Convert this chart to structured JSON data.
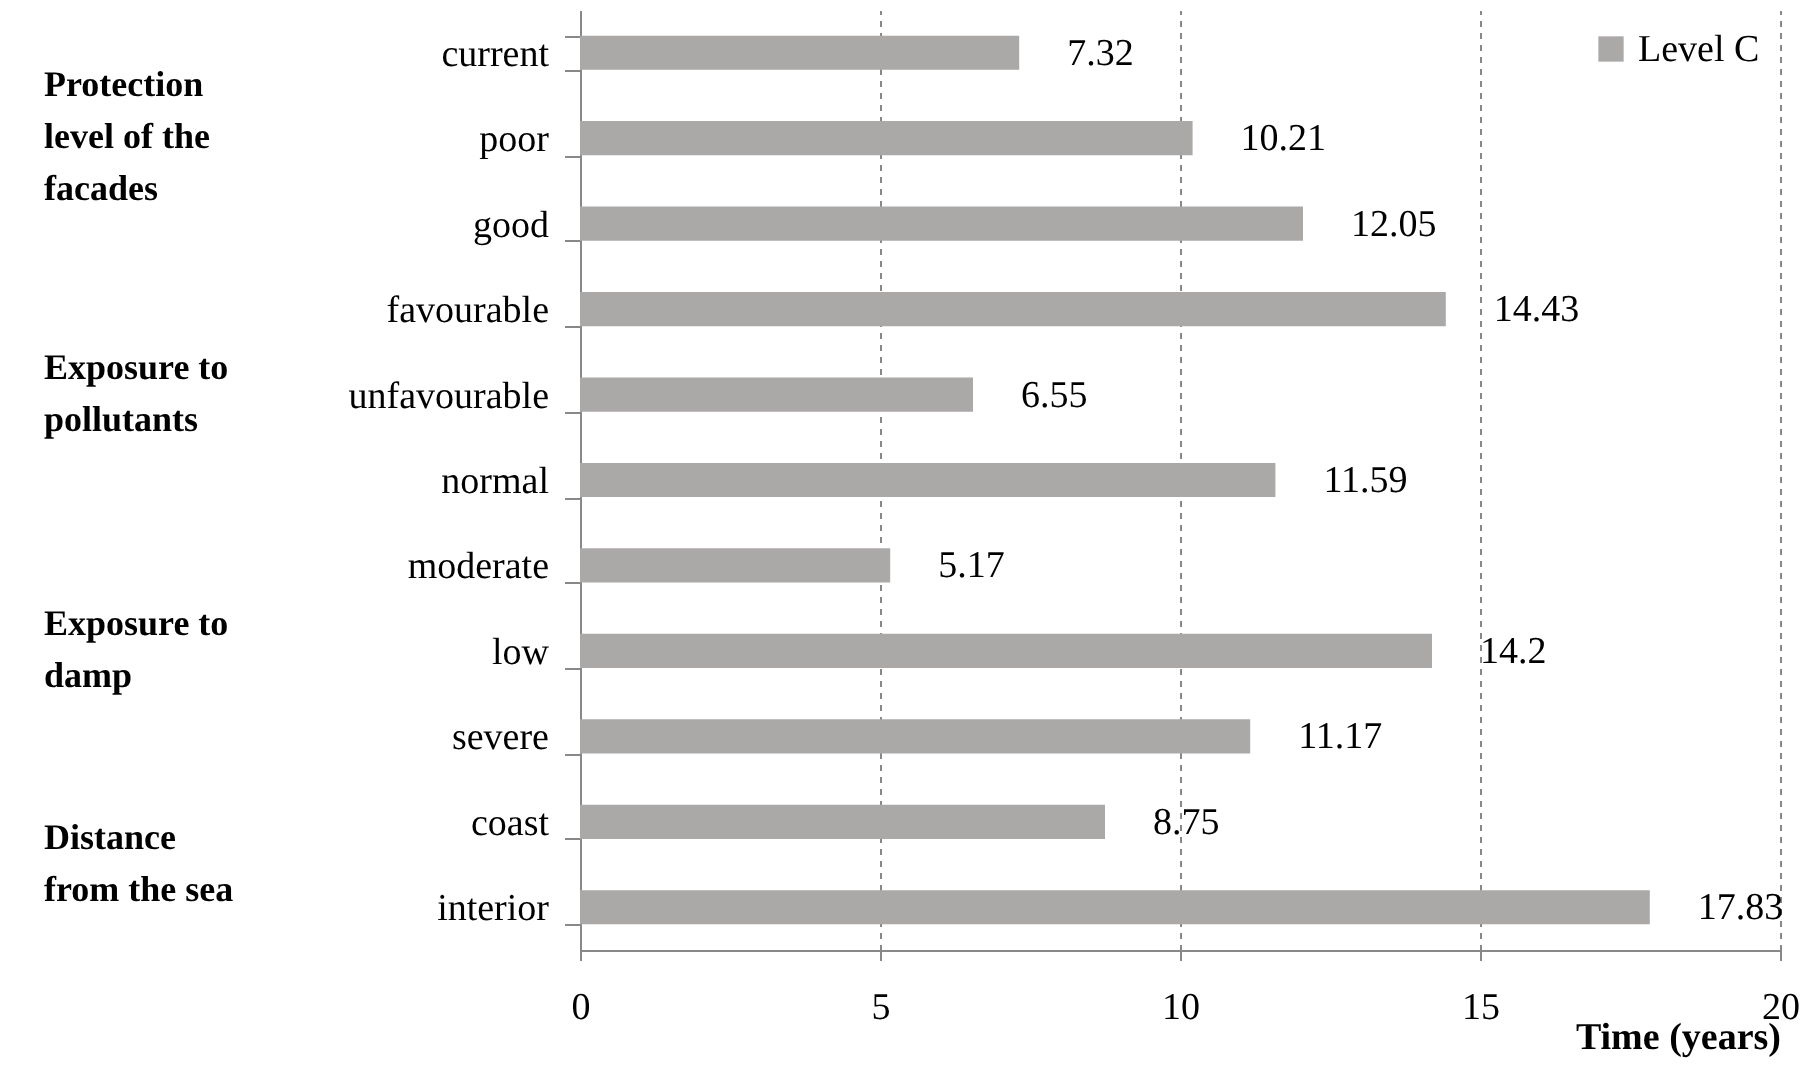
{
  "chart_data": {
    "type": "bar",
    "orientation": "horizontal",
    "xlabel": "Time (years)",
    "categories": [
      "current",
      "poor",
      "good",
      "favourable",
      "unfavourable",
      "normal",
      "moderate",
      "low",
      "severe",
      "coast",
      "interior"
    ],
    "series": [
      {
        "name": "Level C",
        "color": "#aba8a8",
        "values": [
          7.32,
          10.21,
          12.05,
          14.43,
          6.55,
          11.59,
          5.17,
          14.2,
          11.17,
          8.75,
          17.83
        ]
      }
    ],
    "xlim": [
      0,
      20
    ],
    "xticks": [
      0,
      5,
      10,
      15,
      20
    ],
    "grid": "x",
    "legend": "top right",
    "data_labels": true,
    "annotations": [
      "Protection level of the facades",
      "Exposure to pollutants",
      "Exposure to damp",
      "Distance from the sea"
    ]
  }
}
